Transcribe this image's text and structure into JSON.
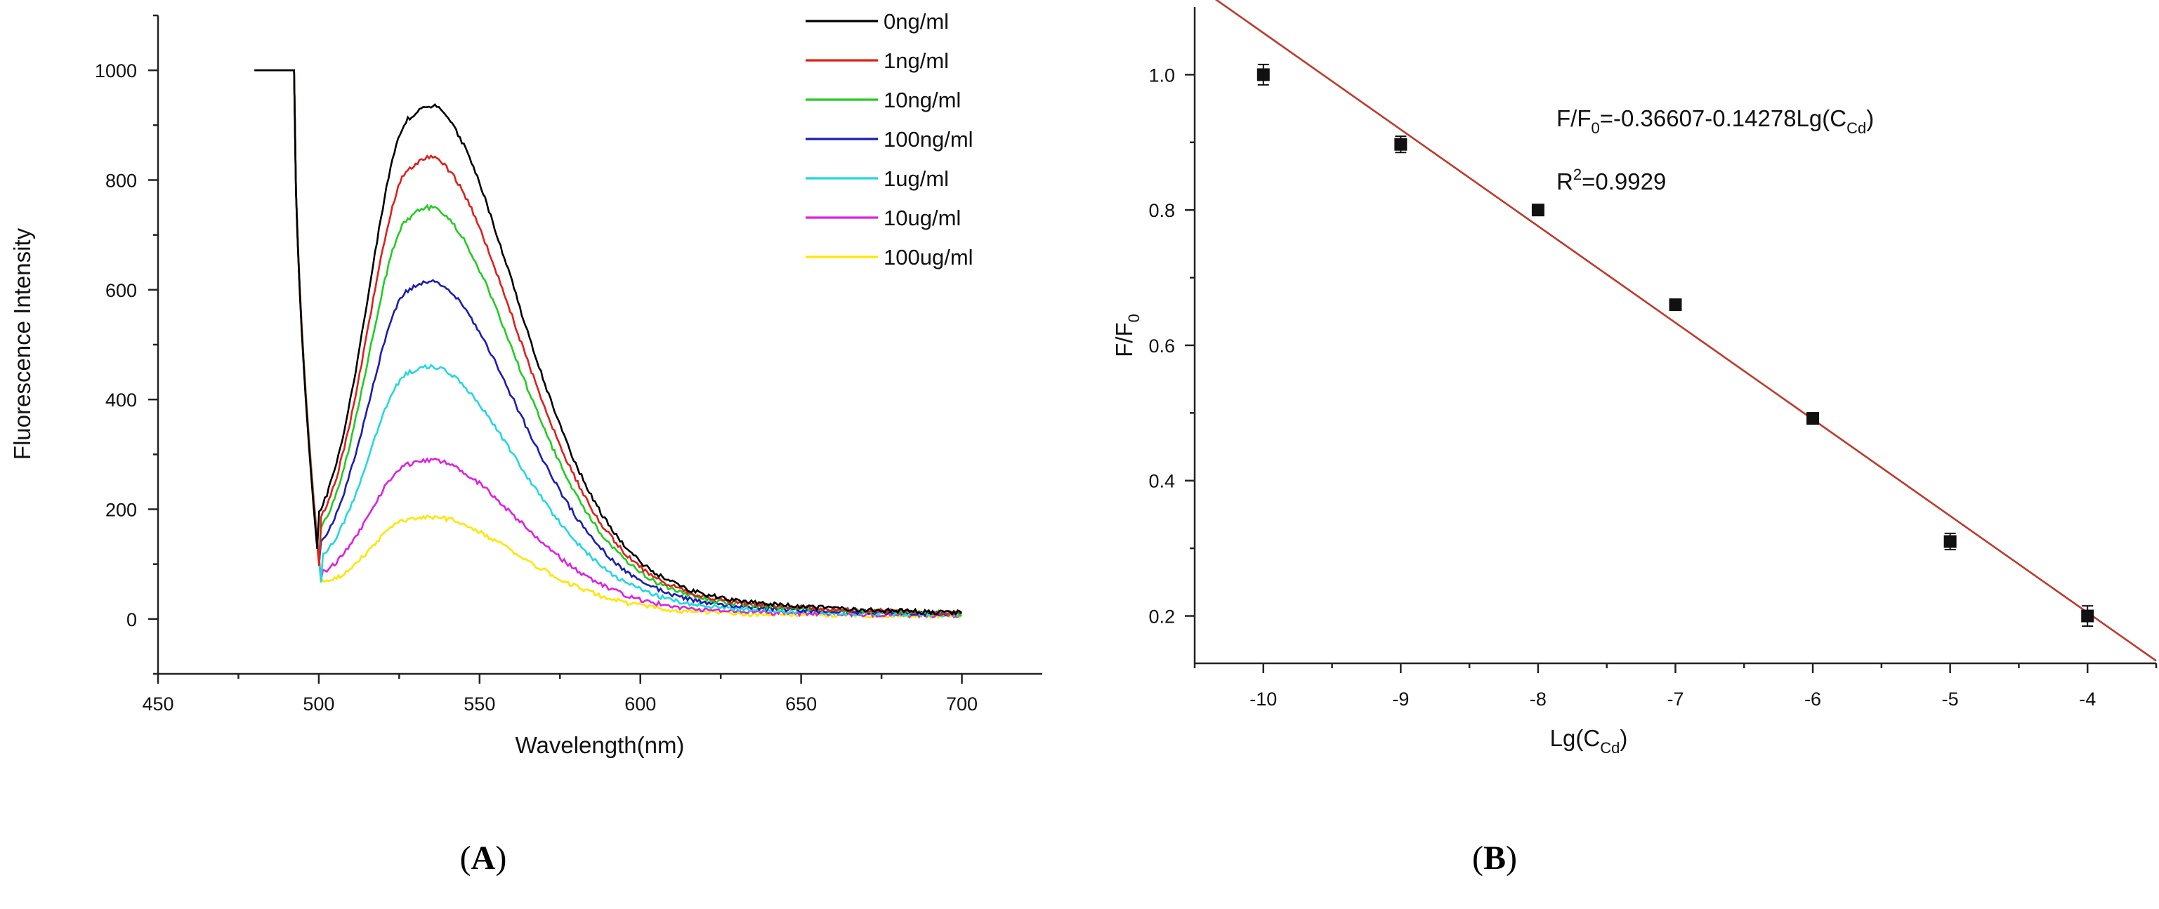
{
  "panels": {
    "a": "A",
    "b": "B"
  },
  "chart_data": [
    {
      "type": "line",
      "ylabel": "Fluorescence Intensity",
      "xlabel": "Wavelength(nm)",
      "xlim": [
        450,
        725
      ],
      "ylim": [
        -100,
        1100
      ],
      "xticks": [
        450,
        500,
        550,
        600,
        650,
        700
      ],
      "yticks": [
        0,
        200,
        400,
        600,
        800,
        1000
      ],
      "legend_position": "top-right",
      "series": [
        {
          "name": "0ng/ml",
          "color": "#000000",
          "peak": 915,
          "base": 95
        },
        {
          "name": "1ng/ml",
          "color": "#e0201b",
          "peak": 822,
          "base": 90
        },
        {
          "name": "10ng/ml",
          "color": "#22cc22",
          "peak": 733,
          "base": 80
        },
        {
          "name": "100ng/ml",
          "color": "#1c1cb4",
          "peak": 602,
          "base": 68
        },
        {
          "name": "1ug/ml",
          "color": "#22d8e0",
          "peak": 450,
          "base": 58
        },
        {
          "name": "10ug/ml",
          "color": "#e020e0",
          "peak": 283,
          "base": 50
        },
        {
          "name": "100ug/ml",
          "color": "#ffe600",
          "peak": 182,
          "base": 42
        }
      ]
    },
    {
      "type": "scatter",
      "ylabel_main": "F/F",
      "ylabel_sub": "0",
      "xlabel_main": "Lg(C",
      "xlabel_sub": "Cd",
      "xlabel_close": ")",
      "xlim": [
        -10.5,
        -3.5
      ],
      "ylim": [
        0.13,
        1.1
      ],
      "xticks": [
        -10,
        -9,
        -8,
        -7,
        -6,
        -5,
        -4
      ],
      "yticks": [
        0.2,
        0.4,
        0.6,
        0.8,
        1.0
      ],
      "points": [
        {
          "x": -10,
          "y": 1.0,
          "err": 0.015
        },
        {
          "x": -9,
          "y": 0.897,
          "err": 0.012
        },
        {
          "x": -8,
          "y": 0.8,
          "err": 0.005
        },
        {
          "x": -7,
          "y": 0.66,
          "err": 0.005
        },
        {
          "x": -6,
          "y": 0.492,
          "err": 0.008
        },
        {
          "x": -5,
          "y": 0.31,
          "err": 0.012
        },
        {
          "x": -4,
          "y": 0.2,
          "err": 0.015
        }
      ],
      "fit": {
        "intercept": -0.36607,
        "slope": -0.14278,
        "color": "#c0392b"
      },
      "equation": {
        "p1": "F/F",
        "s1": "0",
        "p2": "=-0.36607-0.14278Lg(C",
        "s2": "Cd",
        "p3": ")"
      },
      "r2": {
        "p1": "R",
        "sup": "2",
        "p2": "=0.9929"
      }
    }
  ]
}
